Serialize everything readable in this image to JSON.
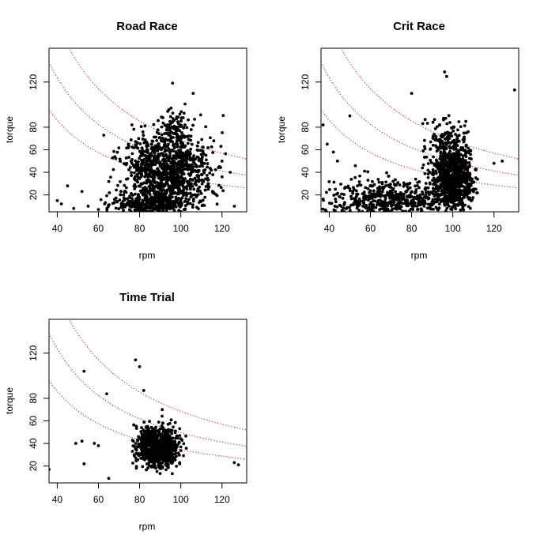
{
  "chart_data": [
    {
      "type": "scatter",
      "title": "Road Race",
      "xlabel": "rpm",
      "ylabel": "torque",
      "xlim": [
        36,
        132
      ],
      "ylim": [
        5,
        150
      ],
      "x_ticks": [
        40,
        60,
        80,
        100,
        120
      ],
      "y_ticks": [
        20,
        40,
        60,
        80,
        120
      ],
      "reference_curves": [
        {
          "k": 3450,
          "style": "dotted",
          "color": "#ff0000"
        },
        {
          "k": 4950,
          "style": "dotted",
          "color": "#ff0000"
        },
        {
          "k": 6850,
          "style": "dotted",
          "color": "#ff0000"
        }
      ],
      "clusters": [
        {
          "n": 1150,
          "cx": 94,
          "cy": 38,
          "sx": 11,
          "sy": 18,
          "xmin": 62,
          "xmax": 124,
          "ymin": 6,
          "ymax": 110
        },
        {
          "n": 260,
          "cx": 84,
          "cy": 10,
          "sx": 9,
          "sy": 5,
          "xmin": 55,
          "xmax": 110,
          "ymin": 5,
          "ymax": 30
        },
        {
          "n": 90,
          "cx": 97,
          "cy": 78,
          "sx": 5,
          "sy": 9,
          "xmin": 85,
          "xmax": 110,
          "ymin": 60,
          "ymax": 112
        }
      ],
      "extra_points": [
        [
          40,
          15
        ],
        [
          42,
          12
        ],
        [
          45,
          28
        ],
        [
          48,
          8
        ],
        [
          52,
          23
        ],
        [
          55,
          10
        ],
        [
          60,
          7
        ],
        [
          63,
          12
        ],
        [
          96,
          119
        ],
        [
          106,
          110
        ],
        [
          126,
          10
        ],
        [
          124,
          40
        ],
        [
          120,
          50
        ]
      ]
    },
    {
      "type": "scatter",
      "title": "Crit Race",
      "xlabel": "rpm",
      "ylabel": "torque",
      "xlim": [
        36,
        132
      ],
      "ylim": [
        5,
        150
      ],
      "x_ticks": [
        40,
        60,
        80,
        100,
        120
      ],
      "y_ticks": [
        20,
        40,
        60,
        80,
        120
      ],
      "reference_curves": [
        {
          "k": 3450,
          "style": "dotted",
          "color": "#ff0000"
        },
        {
          "k": 4950,
          "style": "dotted",
          "color": "#ff0000"
        },
        {
          "k": 6850,
          "style": "dotted",
          "color": "#ff0000"
        }
      ],
      "clusters": [
        {
          "n": 850,
          "cx": 100,
          "cy": 35,
          "sx": 5,
          "sy": 16,
          "xmin": 85,
          "xmax": 112,
          "ymin": 6,
          "ymax": 100
        },
        {
          "n": 500,
          "cx": 70,
          "cy": 14,
          "sx": 17,
          "sy": 10,
          "xmin": 36,
          "xmax": 100,
          "ymin": 5,
          "ymax": 70
        },
        {
          "n": 120,
          "cx": 97,
          "cy": 62,
          "sx": 6,
          "sy": 16,
          "xmin": 85,
          "xmax": 110,
          "ymin": 40,
          "ymax": 128
        }
      ],
      "extra_points": [
        [
          37,
          82
        ],
        [
          39,
          65
        ],
        [
          50,
          90
        ],
        [
          80,
          110
        ],
        [
          96,
          129
        ],
        [
          97,
          125
        ],
        [
          130,
          113
        ],
        [
          124,
          50
        ],
        [
          120,
          48
        ],
        [
          44,
          50
        ],
        [
          42,
          58
        ]
      ]
    },
    {
      "type": "scatter",
      "title": "Time Trial",
      "xlabel": "rpm",
      "ylabel": "torque",
      "xlim": [
        36,
        132
      ],
      "ylim": [
        5,
        150
      ],
      "x_ticks": [
        40,
        60,
        80,
        100,
        120
      ],
      "y_ticks": [
        20,
        40,
        60,
        80,
        120
      ],
      "reference_curves": [
        {
          "k": 3450,
          "style": "dotted",
          "color": "#ff0000"
        },
        {
          "k": 4950,
          "style": "dotted",
          "color": "#ff0000"
        },
        {
          "k": 6850,
          "style": "dotted",
          "color": "#ff0000"
        }
      ],
      "clusters": [
        {
          "n": 900,
          "cx": 89,
          "cy": 37,
          "sx": 5,
          "sy": 9,
          "xmin": 75,
          "xmax": 103,
          "ymin": 13,
          "ymax": 75
        }
      ],
      "extra_points": [
        [
          36,
          17
        ],
        [
          53,
          104
        ],
        [
          49,
          40
        ],
        [
          52,
          42
        ],
        [
          53,
          22
        ],
        [
          58,
          40
        ],
        [
          60,
          38
        ],
        [
          64,
          84
        ],
        [
          65,
          9
        ],
        [
          78,
          114
        ],
        [
          80,
          108
        ],
        [
          82,
          87
        ],
        [
          126,
          23
        ],
        [
          128,
          21
        ],
        [
          91,
          70
        ]
      ]
    }
  ]
}
